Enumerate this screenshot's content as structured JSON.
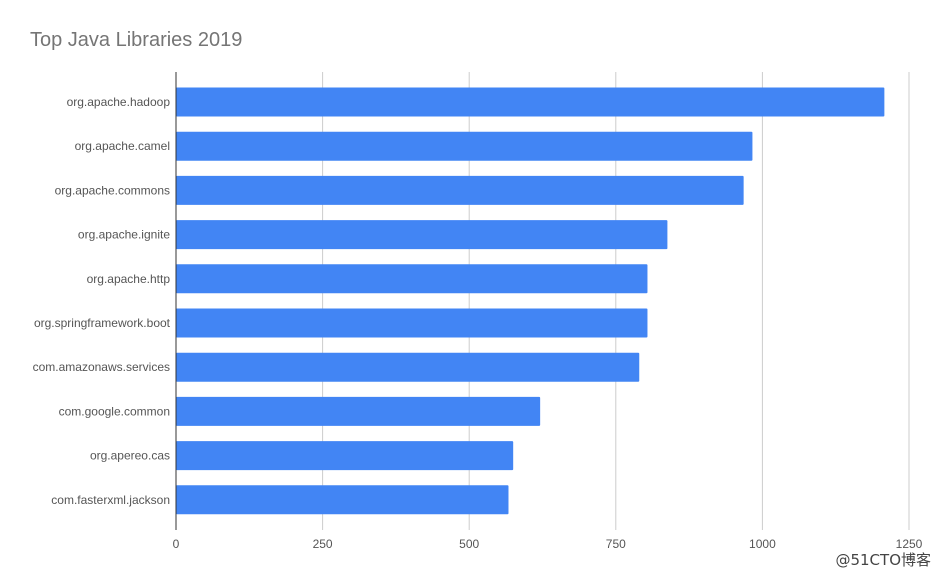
{
  "chart_data": {
    "type": "bar",
    "orientation": "horizontal",
    "title": "Top Java Libraries 2019",
    "categories": [
      "org.apache.hadoop",
      "org.apache.camel",
      "org.apache.commons",
      "org.apache.ignite",
      "org.apache.http",
      "org.springframework.boot",
      "com.amazonaws.services",
      "com.google.common",
      "org.apereo.cas",
      "com.fasterxml.jackson"
    ],
    "values": [
      1208,
      983,
      968,
      838,
      804,
      804,
      790,
      621,
      575,
      567
    ],
    "xticks": [
      0,
      250,
      500,
      750,
      1000,
      1250
    ],
    "xlim": [
      0,
      1250
    ],
    "grid": true,
    "legend": "none",
    "bar_color": "#4285f4",
    "grid_color": "#cccccc",
    "axis_color": "#333333",
    "label_color": "#555555"
  },
  "watermark": "@51CTO博客"
}
